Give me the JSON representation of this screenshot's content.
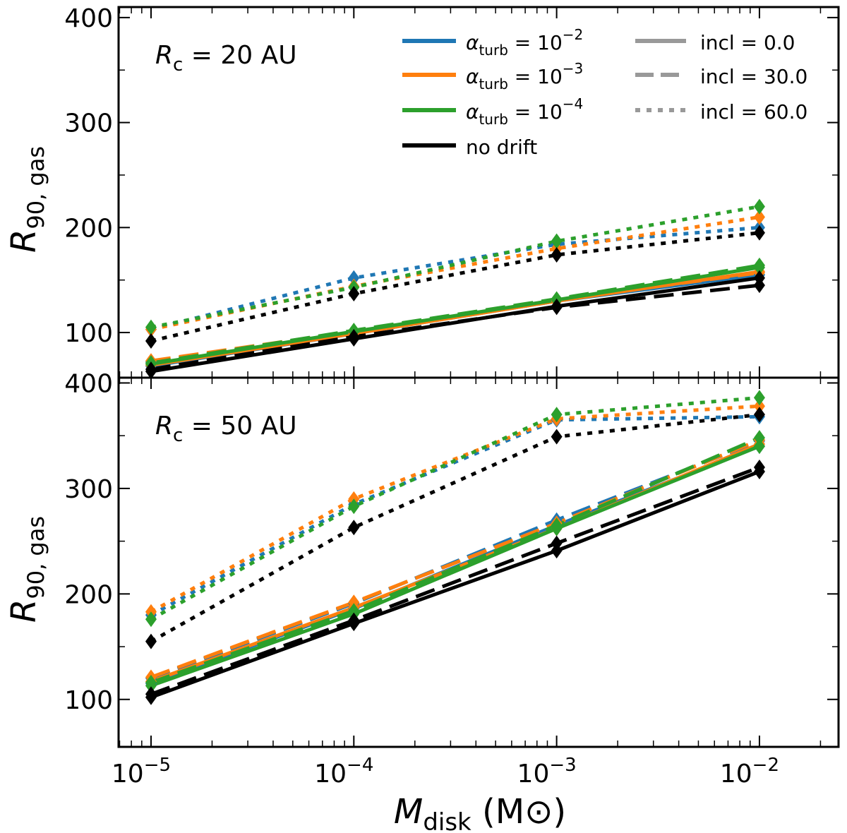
{
  "chart_data": {
    "type": "line",
    "x_scale": "log",
    "x": [
      1e-05,
      0.0001,
      0.001,
      0.01
    ],
    "x_ticks": [
      {
        "base": "10",
        "exp": "−5"
      },
      {
        "base": "10",
        "exp": "−4"
      },
      {
        "base": "10",
        "exp": "−3"
      },
      {
        "base": "10",
        "exp": "−2"
      }
    ],
    "xlabel": {
      "symbol": "M",
      "sub": "disk",
      "unit": "(M",
      "unit_sym": "⊙",
      "unit_close": ")"
    },
    "ylabel": {
      "symbol": "R",
      "sub": "90, gas"
    },
    "y_ticks": [
      "100",
      "200",
      "300",
      "400"
    ],
    "colors": {
      "a2": "#1f77b4",
      "a3": "#ff7f0e",
      "a4": "#2ca02c",
      "nodrift": "#000000",
      "incl_legend": "#999999"
    },
    "legend_alpha": [
      {
        "key": "a2",
        "sym": "α",
        "sub": "turb",
        "eq": " = 10",
        "exp": "−2"
      },
      {
        "key": "a3",
        "sym": "α",
        "sub": "turb",
        "eq": " = 10",
        "exp": "−3"
      },
      {
        "key": "a4",
        "sym": "α",
        "sub": "turb",
        "eq": " = 10",
        "exp": "−4"
      },
      {
        "key": "nodrift",
        "text": "no drift"
      }
    ],
    "legend_incl": [
      {
        "style": "solid",
        "text": "incl = 0.0"
      },
      {
        "style": "dashed",
        "text": "incl = 30.0"
      },
      {
        "style": "dotted",
        "text": "incl = 60.0"
      }
    ],
    "panels": [
      {
        "label": {
          "sym": "R",
          "sub": "c",
          "text": " = 20 AU"
        },
        "ylim": [
          57,
          410
        ],
        "series": [
          {
            "color": "a2",
            "incl": "0.0",
            "values": [
              68,
              99,
              130,
              155
            ]
          },
          {
            "color": "a2",
            "incl": "30.0",
            "values": [
              72,
              100,
              131,
              155
            ]
          },
          {
            "color": "a2",
            "incl": "60.0",
            "values": [
              103,
              152,
              184,
              200
            ]
          },
          {
            "color": "a3",
            "incl": "0.0",
            "values": [
              69,
              99,
              130,
              158
            ]
          },
          {
            "color": "a3",
            "incl": "30.0",
            "values": [
              73,
              101,
              131,
              157
            ]
          },
          {
            "color": "a3",
            "incl": "60.0",
            "values": [
              103,
              144,
              180,
              210
            ]
          },
          {
            "color": "a4",
            "incl": "0.0",
            "values": [
              70,
              101,
              131,
              162
            ]
          },
          {
            "color": "a4",
            "incl": "30.0",
            "values": [
              71,
              102,
              132,
              164
            ]
          },
          {
            "color": "a4",
            "incl": "60.0",
            "values": [
              105,
              143,
              187,
              220
            ]
          },
          {
            "color": "nodrift",
            "incl": "0.0",
            "values": [
              63,
              94,
              125,
              152
            ]
          },
          {
            "color": "nodrift",
            "incl": "30.0",
            "values": [
              65,
              96,
              124,
              145
            ]
          },
          {
            "color": "nodrift",
            "incl": "60.0",
            "values": [
              92,
              137,
              174,
              195
            ]
          }
        ]
      },
      {
        "label": {
          "sym": "R",
          "sub": "c",
          "text": " = 50 AU"
        },
        "ylim": [
          55,
          405
        ],
        "series": [
          {
            "color": "a2",
            "incl": "0.0",
            "values": [
              115,
              186,
              265,
              340
            ]
          },
          {
            "color": "a2",
            "incl": "30.0",
            "values": [
              120,
              191,
              270,
              345
            ]
          },
          {
            "color": "a2",
            "incl": "60.0",
            "values": [
              180,
              285,
              365,
              368
            ]
          },
          {
            "color": "a3",
            "incl": "0.0",
            "values": [
              117,
              187,
              262,
              342
            ]
          },
          {
            "color": "a3",
            "incl": "30.0",
            "values": [
              121,
              192,
              267,
              346
            ]
          },
          {
            "color": "a3",
            "incl": "60.0",
            "values": [
              183,
              290,
              366,
              378
            ]
          },
          {
            "color": "a4",
            "incl": "0.0",
            "values": [
              113,
              181,
              262,
              340
            ]
          },
          {
            "color": "a4",
            "incl": "30.0",
            "values": [
              116,
              184,
              265,
              348
            ]
          },
          {
            "color": "a4",
            "incl": "60.0",
            "values": [
              176,
              283,
              370,
              386
            ]
          },
          {
            "color": "nodrift",
            "incl": "0.0",
            "values": [
              102,
              172,
              241,
              316
            ]
          },
          {
            "color": "nodrift",
            "incl": "30.0",
            "values": [
              105,
              175,
              248,
              320
            ]
          },
          {
            "color": "nodrift",
            "incl": "60.0",
            "values": [
              155,
              263,
              349,
              370
            ]
          }
        ]
      }
    ]
  }
}
